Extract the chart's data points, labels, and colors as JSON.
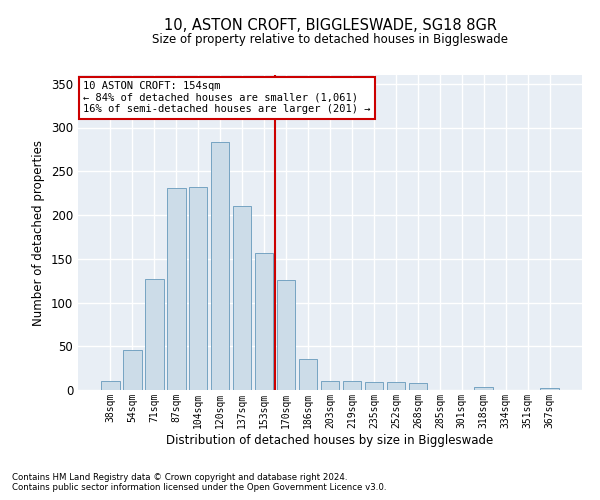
{
  "title_line1": "10, ASTON CROFT, BIGGLESWADE, SG18 8GR",
  "title_line2": "Size of property relative to detached houses in Biggleswade",
  "xlabel": "Distribution of detached houses by size in Biggleswade",
  "ylabel": "Number of detached properties",
  "categories": [
    "38sqm",
    "54sqm",
    "71sqm",
    "87sqm",
    "104sqm",
    "120sqm",
    "137sqm",
    "153sqm",
    "170sqm",
    "186sqm",
    "203sqm",
    "219sqm",
    "235sqm",
    "252sqm",
    "268sqm",
    "285sqm",
    "301sqm",
    "318sqm",
    "334sqm",
    "351sqm",
    "367sqm"
  ],
  "values": [
    10,
    46,
    127,
    231,
    232,
    284,
    210,
    157,
    126,
    35,
    10,
    10,
    9,
    9,
    8,
    0,
    0,
    3,
    0,
    0,
    2
  ],
  "bar_color": "#ccdce8",
  "bar_edge_color": "#6699bb",
  "background_color": "#e8eef5",
  "grid_color": "#ffffff",
  "vline_color": "#cc0000",
  "vline_idx": 7,
  "annotation_text": "10 ASTON CROFT: 154sqm\n← 84% of detached houses are smaller (1,061)\n16% of semi-detached houses are larger (201) →",
  "annotation_box_color": "#ffffff",
  "annotation_box_edge_color": "#cc0000",
  "ylim": [
    0,
    360
  ],
  "yticks": [
    0,
    50,
    100,
    150,
    200,
    250,
    300,
    350
  ],
  "footnote1": "Contains HM Land Registry data © Crown copyright and database right 2024.",
  "footnote2": "Contains public sector information licensed under the Open Government Licence v3.0."
}
